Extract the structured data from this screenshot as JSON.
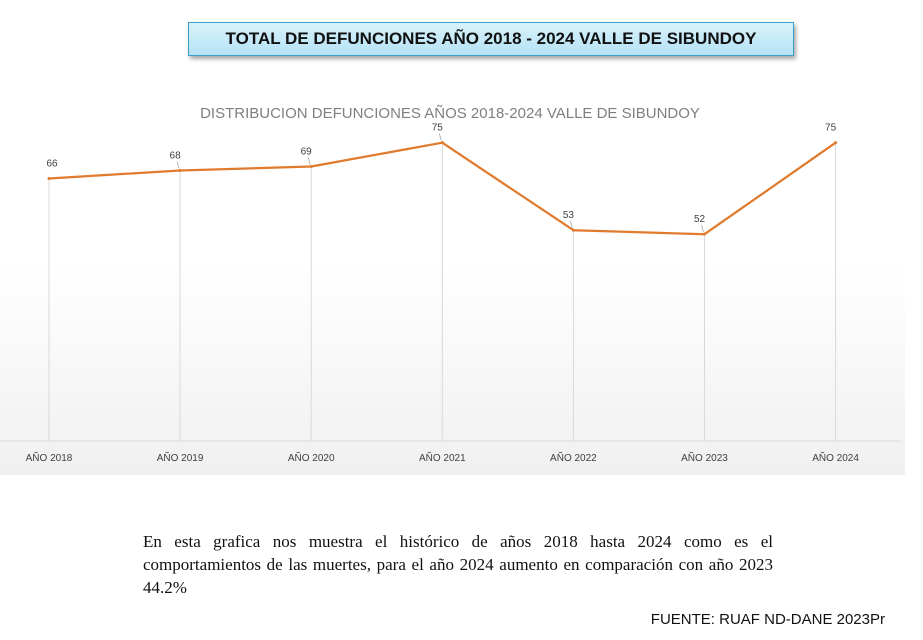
{
  "banner": {
    "title": "TOTAL DE DEFUNCIONES AÑO 2018 - 2024 VALLE DE SIBUNDOY"
  },
  "chart_data": {
    "type": "line",
    "title": "DISTRIBUCION DEFUNCIONES AÑOS 2018-2024 VALLE DE SIBUNDOY",
    "categories": [
      "AÑO 2018",
      "AÑO 2019",
      "AÑO 2020",
      "AÑO 2021",
      "AÑO 2022",
      "AÑO 2023",
      "AÑO 2024"
    ],
    "values": [
      66,
      68,
      69,
      75,
      53,
      52,
      75
    ],
    "ylim": [
      0,
      90
    ],
    "grid": "vertical",
    "line_color": "#e07b2e"
  },
  "caption": {
    "text": "En esta grafica nos muestra el histórico de años 2018 hasta 2024 como es el comportamientos de las muertes,  para el año 2024 aumento en comparación con año 2023 44.2%"
  },
  "source": {
    "text": "FUENTE: RUAF ND-DANE 2023Pr"
  }
}
